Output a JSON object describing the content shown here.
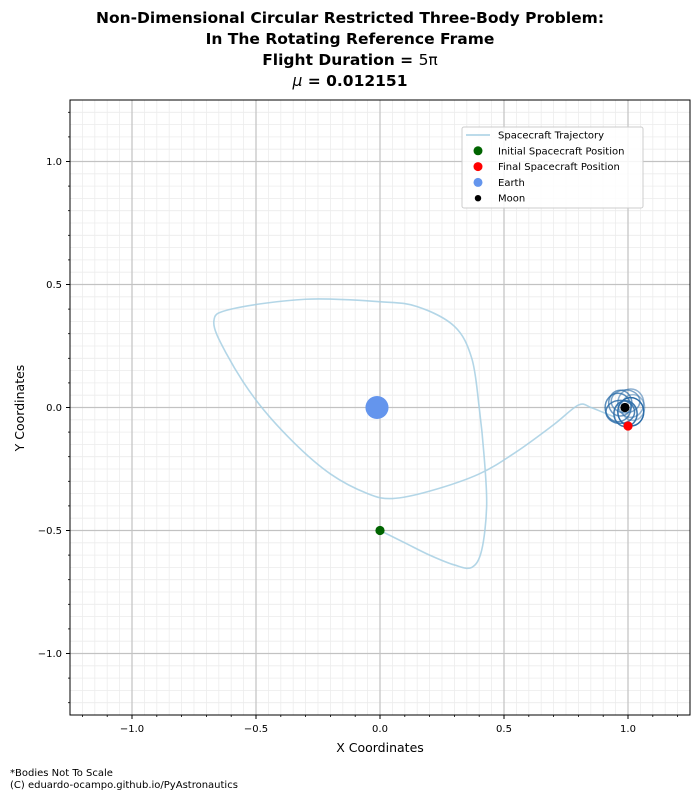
{
  "title": {
    "line1": "Non-Dimensional Circular Restricted Three-Body Problem:",
    "line2": "In The Rotating Reference Frame",
    "line3_prefix": "Flight Duration = ",
    "line3_value": "5π",
    "line4_symbol": "μ",
    "line4_rest": " = 0.012151"
  },
  "footnotes": {
    "scale_note": "*Bodies Not To Scale",
    "credit": "(C) eduardo-ocampo.github.io/PyAstronautics"
  },
  "chart_data": {
    "type": "line",
    "xlabel": "X Coordinates",
    "ylabel": "Y Coordinates",
    "xlim": [
      -1.25,
      1.25
    ],
    "ylim": [
      -1.25,
      1.25
    ],
    "xticks": [
      -1.0,
      -0.5,
      0.0,
      0.5,
      1.0
    ],
    "yticks": [
      -1.0,
      -0.5,
      0.0,
      0.5,
      1.0
    ],
    "xtick_labels": [
      "−1.0",
      "−0.5",
      "0.0",
      "0.5",
      "1.0"
    ],
    "ytick_labels": [
      "−1.0",
      "−0.5",
      "0.0",
      "0.5",
      "1.0"
    ],
    "grid": true,
    "legend_position": "top-right",
    "mu": 0.012151,
    "series": [
      {
        "name": "Spacecraft Trajectory",
        "kind": "line",
        "color": "#a6cfe3",
        "points": [
          [
            0.0,
            -0.5
          ],
          [
            0.1,
            -0.55
          ],
          [
            0.2,
            -0.6
          ],
          [
            0.3,
            -0.64
          ],
          [
            0.37,
            -0.65
          ],
          [
            0.41,
            -0.58
          ],
          [
            0.43,
            -0.4
          ],
          [
            0.42,
            -0.2
          ],
          [
            0.4,
            0.0
          ],
          [
            0.37,
            0.2
          ],
          [
            0.3,
            0.33
          ],
          [
            0.15,
            0.41
          ],
          [
            0.0,
            0.43
          ],
          [
            -0.3,
            0.44
          ],
          [
            -0.6,
            0.4
          ],
          [
            -0.67,
            0.35
          ],
          [
            -0.62,
            0.22
          ],
          [
            -0.5,
            0.03
          ],
          [
            -0.35,
            -0.14
          ],
          [
            -0.2,
            -0.27
          ],
          [
            -0.05,
            -0.35
          ],
          [
            0.05,
            -0.37
          ],
          [
            0.2,
            -0.34
          ],
          [
            0.4,
            -0.27
          ],
          [
            0.55,
            -0.18
          ],
          [
            0.7,
            -0.07
          ],
          [
            0.8,
            0.01
          ],
          [
            0.85,
            0.0
          ],
          [
            0.9,
            -0.02
          ],
          [
            0.95,
            -0.04
          ]
        ]
      },
      {
        "name": "",
        "kind": "lunar-loops",
        "color": "#2b6ca8",
        "center": [
          0.99,
          0.0
        ],
        "radius_x": 0.055,
        "radius_y": 0.055,
        "loops": 8
      }
    ],
    "markers": [
      {
        "name": "Initial Spacecraft Position",
        "x": 0.0,
        "y": -0.5,
        "color": "#006400",
        "size": 6
      },
      {
        "name": "Final Spacecraft Position",
        "x": 1.0,
        "y": -0.075,
        "color": "#ff0000",
        "size": 6
      },
      {
        "name": "Earth",
        "x": -0.012151,
        "y": 0.0,
        "color": "#6495ed",
        "size": 15
      },
      {
        "name": "Moon",
        "x": 0.987849,
        "y": 0.0,
        "color": "#000000",
        "size": 6
      }
    ]
  }
}
